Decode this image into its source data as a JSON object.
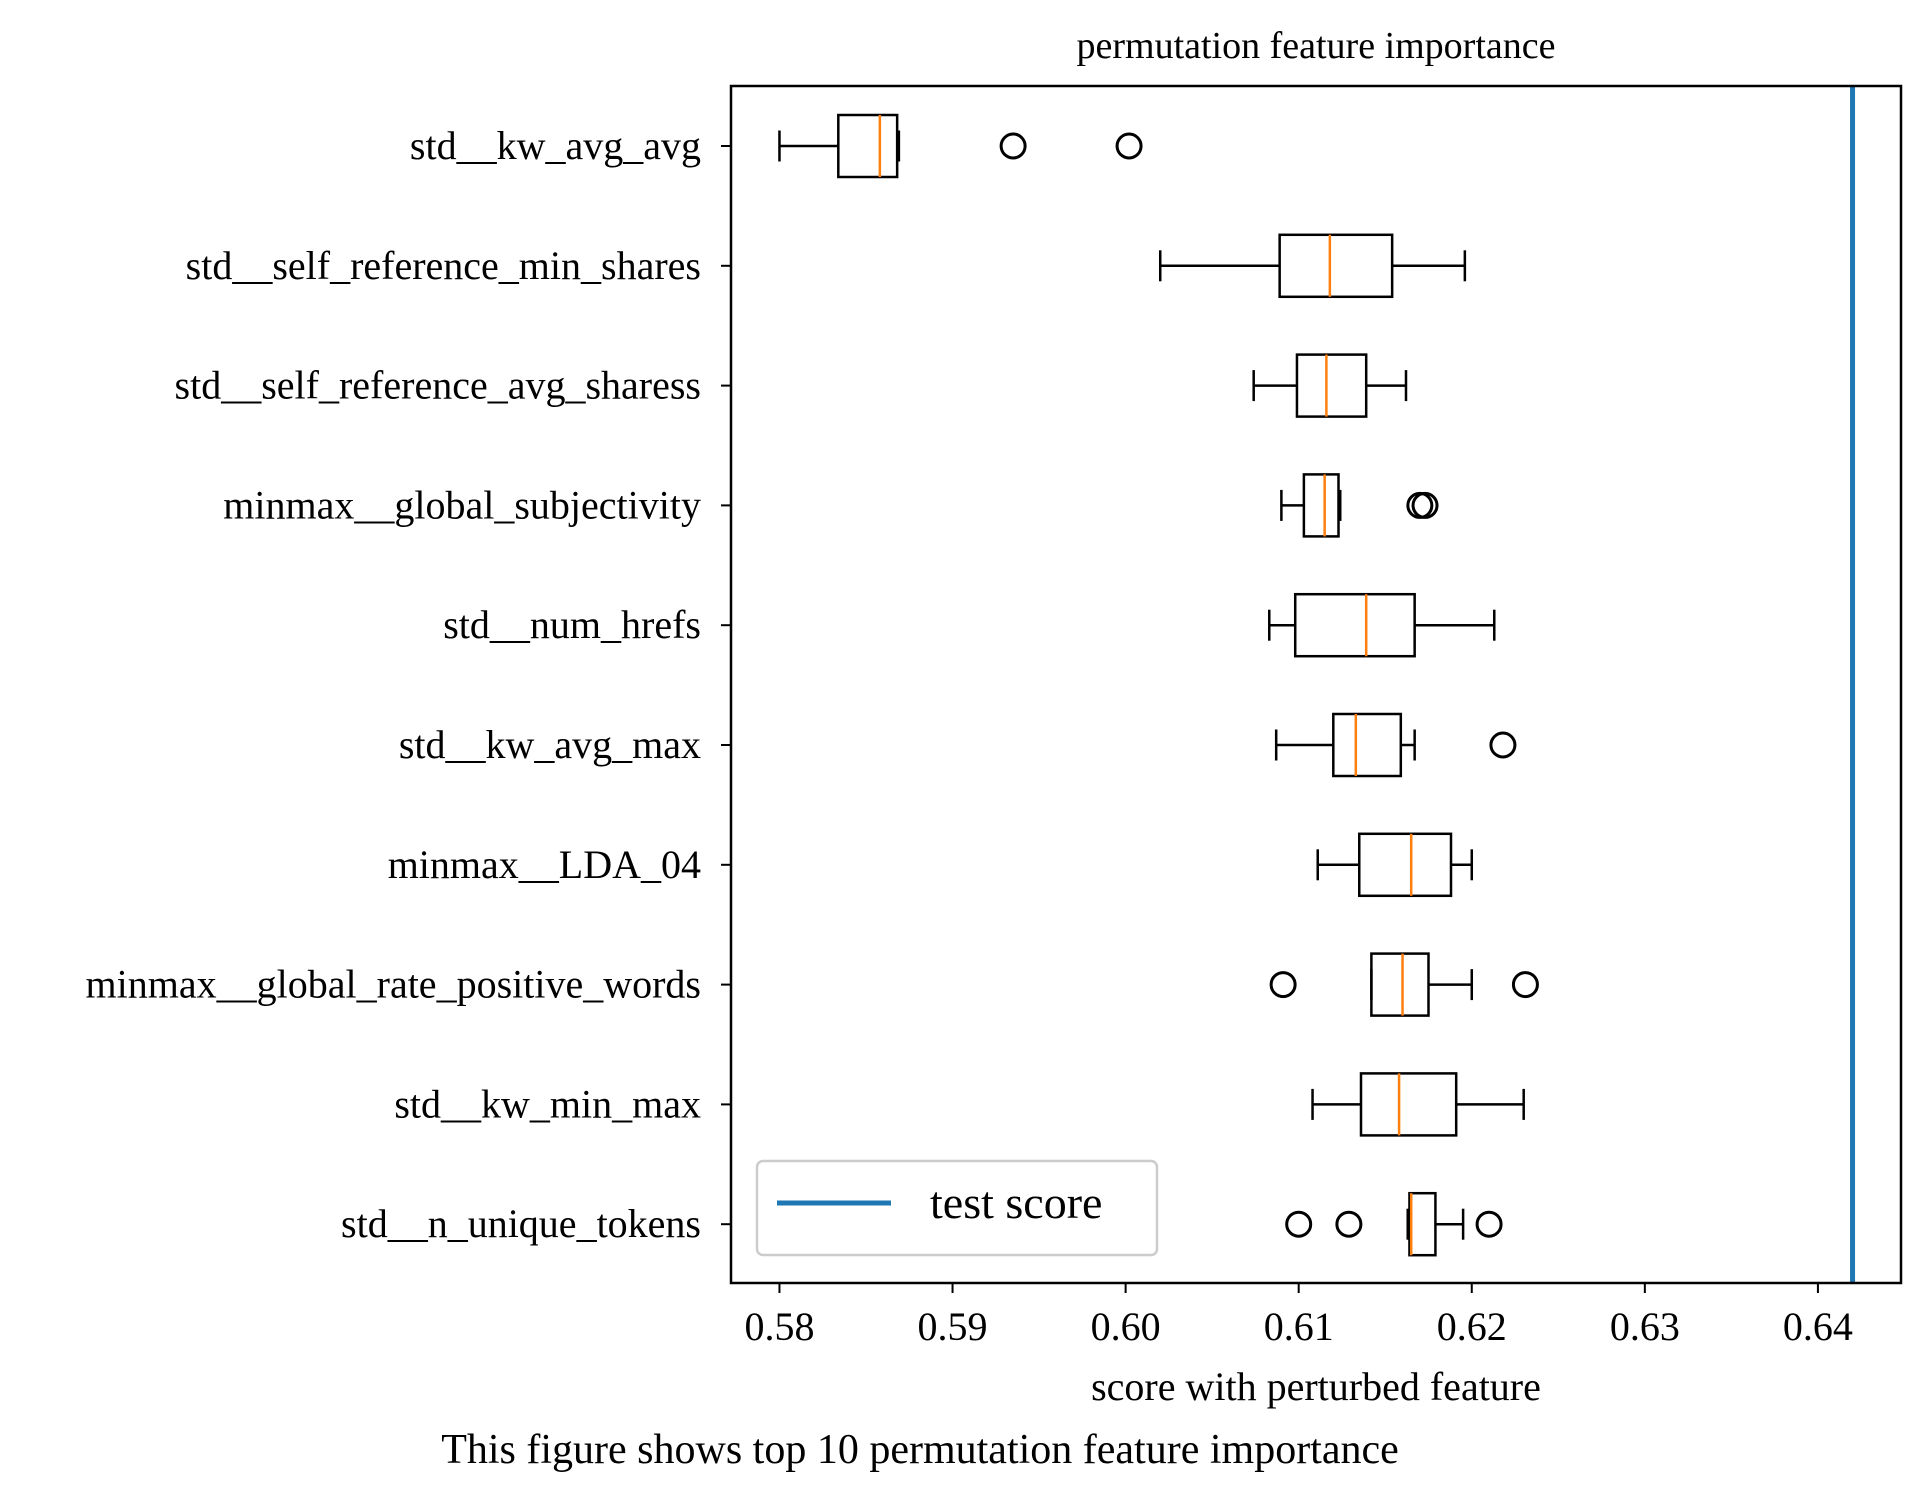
{
  "caption": "This figure shows top 10 permutation feature importance",
  "colors": {
    "box": "#000000",
    "median": "#ff7f0e",
    "test_line": "#1f77b4"
  },
  "chart_data": {
    "type": "boxplot",
    "orientation": "horizontal",
    "title": "permutation feature importance",
    "xlabel": "score with perturbed feature",
    "ylabel": "",
    "xlim": [
      0.5772,
      0.6448
    ],
    "xticks": [
      "0.58",
      "0.59",
      "0.60",
      "0.61",
      "0.62",
      "0.63",
      "0.64"
    ],
    "xtick_values": [
      0.58,
      0.59,
      0.6,
      0.61,
      0.62,
      0.63,
      0.64
    ],
    "grid": false,
    "legend": {
      "position": "lower-left",
      "entries": [
        "test score"
      ]
    },
    "test_score": 0.642,
    "features": [
      {
        "label": "std__kw_avg_avg",
        "whisker_low": 0.58,
        "q1": 0.5834,
        "median": 0.5858,
        "q3": 0.5868,
        "whisker_high": 0.5869,
        "outliers": [
          0.5935,
          0.6002
        ]
      },
      {
        "label": "std__self_reference_min_shares",
        "whisker_low": 0.602,
        "q1": 0.6089,
        "median": 0.6118,
        "q3": 0.6154,
        "whisker_high": 0.6196,
        "outliers": []
      },
      {
        "label": "std__self_reference_avg_sharess",
        "whisker_low": 0.6074,
        "q1": 0.6099,
        "median": 0.6116,
        "q3": 0.6139,
        "whisker_high": 0.6162,
        "outliers": []
      },
      {
        "label": "minmax__global_subjectivity",
        "whisker_low": 0.609,
        "q1": 0.6103,
        "median": 0.6115,
        "q3": 0.6123,
        "whisker_high": 0.6124,
        "outliers": [
          0.617,
          0.6173
        ]
      },
      {
        "label": "std__num_hrefs",
        "whisker_low": 0.6083,
        "q1": 0.6098,
        "median": 0.6139,
        "q3": 0.6167,
        "whisker_high": 0.6213,
        "outliers": []
      },
      {
        "label": "std__kw_avg_max",
        "whisker_low": 0.6087,
        "q1": 0.612,
        "median": 0.6133,
        "q3": 0.6159,
        "whisker_high": 0.6167,
        "outliers": [
          0.6218
        ]
      },
      {
        "label": "minmax__LDA_04",
        "whisker_low": 0.6111,
        "q1": 0.6135,
        "median": 0.6165,
        "q3": 0.6188,
        "whisker_high": 0.62,
        "outliers": []
      },
      {
        "label": "minmax__global_rate_positive_words",
        "whisker_low": 0.6142,
        "q1": 0.6142,
        "median": 0.616,
        "q3": 0.6175,
        "whisker_high": 0.62,
        "outliers": [
          0.6091,
          0.6231
        ]
      },
      {
        "label": "std__kw_min_max",
        "whisker_low": 0.6108,
        "q1": 0.6136,
        "median": 0.6158,
        "q3": 0.6191,
        "whisker_high": 0.623,
        "outliers": []
      },
      {
        "label": "std__n_unique_tokens",
        "whisker_low": 0.6163,
        "q1": 0.6164,
        "median": 0.6165,
        "q3": 0.6179,
        "whisker_high": 0.6195,
        "outliers": [
          0.61,
          0.6129,
          0.621
        ]
      }
    ]
  }
}
